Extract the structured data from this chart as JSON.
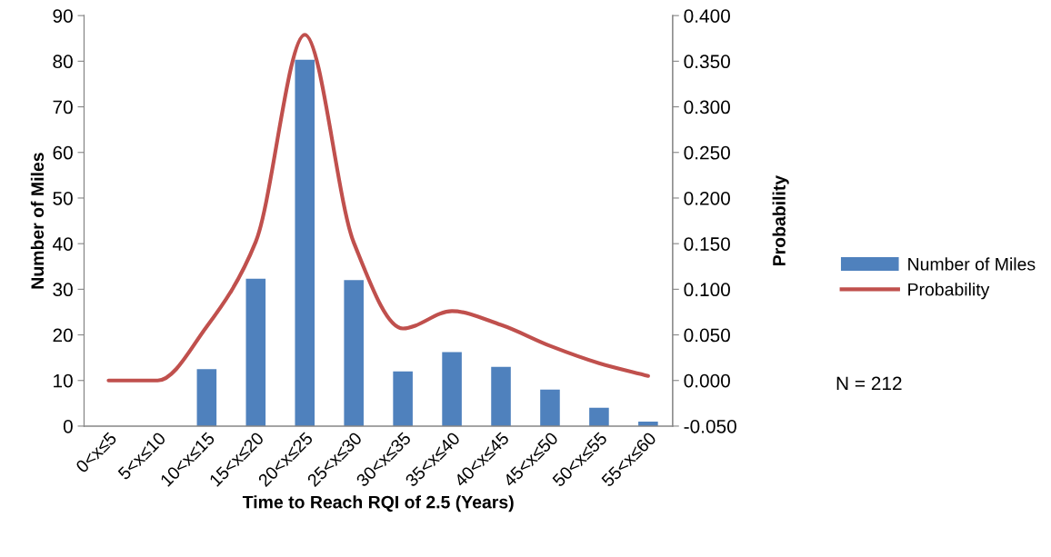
{
  "chart_data": {
    "type": "bar",
    "xlabel": "Time to Reach RQI of 2.5 (Years)",
    "ylabel": "Number of Miles",
    "y2label": "Probability",
    "categories": [
      "0<x≤5",
      "5<x≤10",
      "10<x≤15",
      "15<x≤20",
      "20<x≤25",
      "25<x≤30",
      "30<x≤35",
      "35<x≤40",
      "40<x≤45",
      "45<x≤50",
      "50<x≤55",
      "55<x≤60"
    ],
    "series": [
      {
        "name": "Number of Miles",
        "color": "#4f81bd",
        "values": [
          0,
          0,
          12.5,
          32.3,
          80.3,
          32,
          12,
          16.2,
          13,
          8,
          4,
          1
        ]
      },
      {
        "name": "Probability",
        "type": "line",
        "axis": "y2",
        "color": "#c0504d",
        "values": [
          0,
          0,
          0.059,
          0.152,
          0.379,
          0.151,
          0.057,
          0.076,
          0.061,
          0.038,
          0.019,
          0.005
        ]
      }
    ],
    "ylim": [
      0,
      90
    ],
    "yticks": [
      0,
      10,
      20,
      30,
      40,
      50,
      60,
      70,
      80,
      90
    ],
    "y2lim": [
      -0.05,
      0.4
    ],
    "y2ticks": [
      {
        "value": -0.05,
        "label": "-0.050"
      },
      {
        "value": 0,
        "label": "0.000"
      },
      {
        "value": 0.05,
        "label": "0.050"
      },
      {
        "value": 0.1,
        "label": "0.100"
      },
      {
        "value": 0.15,
        "label": "0.150"
      },
      {
        "value": 0.2,
        "label": "0.200"
      },
      {
        "value": 0.25,
        "label": "0.250"
      },
      {
        "value": 0.3,
        "label": "0.300"
      },
      {
        "value": 0.35,
        "label": "0.350"
      },
      {
        "value": 0.4,
        "label": "0.400"
      }
    ],
    "annotations": [
      "N = 212"
    ],
    "legend": "right",
    "grid": false,
    "marker": "none",
    "line_style": "solid"
  }
}
